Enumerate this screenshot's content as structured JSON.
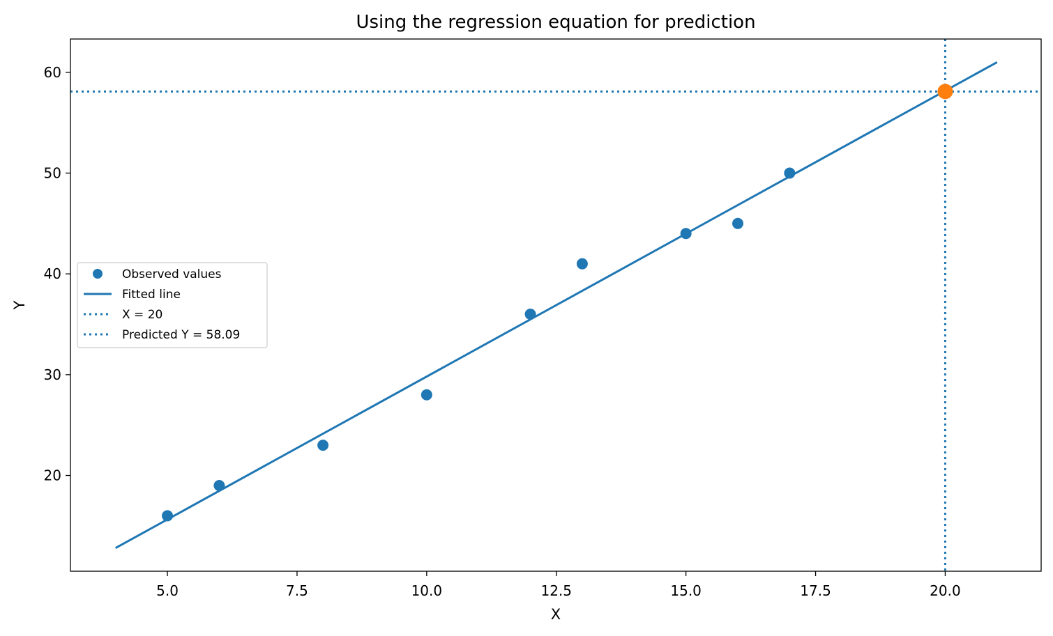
{
  "chart_data": {
    "type": "scatter",
    "title": "Using the regression equation for prediction",
    "xlabel": "X",
    "ylabel": "Y",
    "xlim": [
      3.13,
      21.85
    ],
    "ylim": [
      10.5,
      63.3
    ],
    "xticks": [
      5.0,
      7.5,
      10.0,
      12.5,
      15.0,
      17.5,
      20.0
    ],
    "xtick_labels": [
      "5.0",
      "7.5",
      "10.0",
      "12.5",
      "15.0",
      "17.5",
      "20.0"
    ],
    "yticks": [
      20,
      30,
      40,
      50,
      60
    ],
    "ytick_labels": [
      "20",
      "30",
      "40",
      "50",
      "60"
    ],
    "grid": false,
    "legend_position": "center-left",
    "series": [
      {
        "name": "Observed values",
        "kind": "scatter",
        "color": "#1f77b4",
        "x": [
          5,
          6,
          8,
          10,
          12,
          13,
          15,
          16,
          17
        ],
        "y": [
          16,
          19,
          23,
          28,
          36,
          41,
          44,
          45,
          50
        ]
      },
      {
        "name": "Fitted line",
        "kind": "line",
        "color": "#1f77b4",
        "x": [
          4,
          21
        ],
        "y": [
          12.8,
          61.0
        ]
      },
      {
        "name": "X = 20",
        "kind": "vline",
        "style": "dotted",
        "color": "#1f77b4",
        "x": 20
      },
      {
        "name": "Predicted Y = 58.09",
        "kind": "hline",
        "style": "dotted",
        "color": "#1f77b4",
        "y": 58.09
      },
      {
        "kind": "highlight-point",
        "color": "#ff7f0e",
        "x": [
          20
        ],
        "y": [
          58.09
        ]
      }
    ]
  }
}
